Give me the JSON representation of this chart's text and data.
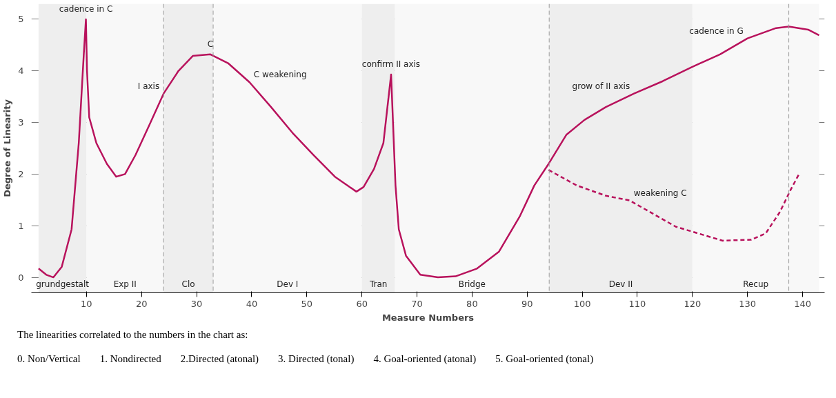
{
  "chart_data": {
    "type": "line",
    "xlabel": "Measure Numbers",
    "ylabel": "Degree of Linearity",
    "xlim": [
      0,
      144
    ],
    "ylim": [
      -0.3,
      5.3
    ],
    "xticks": [
      10,
      20,
      30,
      40,
      50,
      60,
      70,
      80,
      90,
      100,
      110,
      120,
      130,
      140
    ],
    "yticks": [
      0,
      1,
      2,
      3,
      4,
      5
    ],
    "grid": "y",
    "series": [
      {
        "color": "#b8125c",
        "line_style": "solid",
        "x": [
          1.3,
          2.7,
          4,
          5.5,
          7.3,
          8.6,
          9.5,
          9.9,
          10.1,
          10.5,
          11.8,
          13.7,
          15.4,
          17,
          18.9,
          21.5,
          24,
          26.7,
          29.3,
          32.5,
          35.7,
          39.6,
          43.5,
          47.4,
          51.2,
          55.1,
          59,
          60.3,
          62.2,
          63.9,
          65.3,
          66.1,
          66.7,
          68,
          70.6,
          73.8,
          77,
          80.9,
          84.9,
          88.7,
          91.3,
          93.9,
          97.1,
          100.4,
          104.3,
          109.4,
          114.6,
          119.8,
          125,
          130,
          135.2,
          137.5,
          141,
          143
        ],
        "values": [
          0.17,
          0.05,
          0,
          0.2,
          0.93,
          2.6,
          4.3,
          5,
          4,
          3.1,
          2.6,
          2.2,
          1.95,
          2,
          2.37,
          2.97,
          3.56,
          4,
          4.29,
          4.32,
          4.15,
          3.78,
          3.3,
          2.8,
          2.37,
          1.95,
          1.66,
          1.75,
          2.1,
          2.6,
          3.93,
          1.78,
          0.93,
          0.42,
          0.05,
          0,
          0.02,
          0.17,
          0.5,
          1.19,
          1.78,
          2.2,
          2.76,
          3.05,
          3.3,
          3.56,
          3.8,
          4.07,
          4.32,
          4.63,
          4.83,
          4.86,
          4.8,
          4.69
        ]
      },
      {
        "color": "#b8125c",
        "line_style": "dashed",
        "x": [
          93.9,
          99,
          104.3,
          108.6,
          117,
          125.5,
          130.7,
          133.3,
          135.9,
          137.8,
          139.5
        ],
        "values": [
          2.08,
          1.78,
          1.58,
          1.49,
          0.98,
          0.71,
          0.73,
          0.85,
          1.27,
          1.69,
          2.03
        ]
      }
    ],
    "ref_lines": [
      {
        "axis": "x",
        "value": 24,
        "color": "#9a9a9a",
        "line_style": "dashed"
      },
      {
        "axis": "x",
        "value": 33,
        "color": "#9a9a9a",
        "line_style": "dashed"
      },
      {
        "axis": "x",
        "value": 94,
        "color": "#9a9a9a",
        "line_style": "dashed"
      },
      {
        "axis": "x",
        "value": 137.5,
        "color": "#9a9a9a",
        "line_style": "dashed"
      }
    ],
    "bands": [
      {
        "axis": "x",
        "from": 1.3,
        "to": 10,
        "label": "grundgestalt",
        "color": "#eeeeee"
      },
      {
        "axis": "x",
        "from": 10,
        "to": 24,
        "label": "Exp II",
        "color": "#f8f8f8"
      },
      {
        "axis": "x",
        "from": 24,
        "to": 33,
        "label": "Clo",
        "color": "#eeeeee"
      },
      {
        "axis": "x",
        "from": 33,
        "to": 60,
        "label": "Dev I",
        "color": "#f8f8f8"
      },
      {
        "axis": "x",
        "from": 60,
        "to": 66,
        "label": "Tran",
        "color": "#eeeeee"
      },
      {
        "axis": "x",
        "from": 66,
        "to": 94,
        "label": "Bridge",
        "color": "#f8f8f8"
      },
      {
        "axis": "x",
        "from": 94,
        "to": 120,
        "label": "Dev II",
        "color": "#eeeeee"
      },
      {
        "axis": "x",
        "from": 120,
        "to": 143,
        "label": "Recup",
        "color": "#f8f8f8"
      }
    ],
    "annotations": [
      {
        "text": "cadence in C",
        "x": 9.9,
        "y": 5
      },
      {
        "text": "C",
        "x": 32.5,
        "y": 4.32
      },
      {
        "text": "I axis",
        "x": 24,
        "y": 3.56
      },
      {
        "text": "C weakening",
        "x": 39.6,
        "y": 3.78
      },
      {
        "text": "confirm II axis",
        "x": 65.3,
        "y": 3.93
      },
      {
        "text": "grow of II axis",
        "x": 109.4,
        "y": 3.56
      },
      {
        "text": "cadence in G",
        "x": 130,
        "y": 4.63
      },
      {
        "text": "weakening C",
        "x": 108.6,
        "y": 1.49
      },
      "The linearities correlated to the numbers in the chart as:",
      "0.  Non/Vertical",
      "1. Nondirected",
      "2.Directed (atonal)",
      "3. Directed (tonal)",
      "4. Goal-oriented (atonal)",
      "5. Goal-oriented (tonal)"
    ]
  }
}
